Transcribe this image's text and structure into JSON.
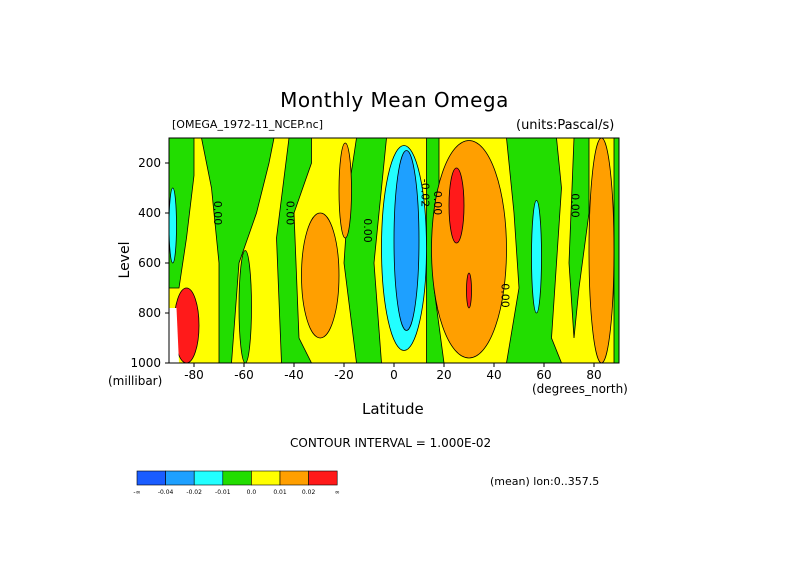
{
  "chart_data": {
    "type": "heatmap",
    "title": "Monthly Mean Omega",
    "file_label": "[OMEGA_1972-11_NCEP.nc]",
    "units_label": "(units:Pascal/s)",
    "xlabel": "Latitude",
    "x_units": "(degrees_north)",
    "ylabel": "Level",
    "y_units": "(millibar)",
    "xlim": [
      -90,
      90
    ],
    "ylim": [
      1000,
      100
    ],
    "x_ticks": [
      -80,
      -60,
      -40,
      -20,
      0,
      20,
      40,
      60,
      80
    ],
    "y_ticks": [
      200,
      400,
      600,
      800,
      1000
    ],
    "contour_interval_text": "CONTOUR INTERVAL = 1.000E-02",
    "mean_text": "(mean) lon:0..357.5",
    "colorbar": {
      "colors": [
        "#1a5cff",
        "#1ea0ff",
        "#22ffff",
        "#22dd00",
        "#ffff00",
        "#ff9f00",
        "#ff1a1a"
      ],
      "labels": [
        "-∞",
        "-0.04",
        "-0.02",
        "-0.01",
        "0.0",
        "0.01",
        "0.02",
        "∞"
      ]
    },
    "contour_labels": [
      {
        "text": "0.00",
        "lat": -72,
        "lev": 400
      },
      {
        "text": "0.00",
        "lat": -43,
        "lev": 400
      },
      {
        "text": "0.00",
        "lat": -12,
        "lev": 470
      },
      {
        "text": "-0.02",
        "lat": 11,
        "lev": 320
      },
      {
        "text": "0.00",
        "lat": 16,
        "lev": 360
      },
      {
        "text": "0.00",
        "lat": 43,
        "lev": 730
      },
      {
        "text": "0.00",
        "lat": 71,
        "lev": 370
      }
    ],
    "regions": [
      {
        "value": -0.02,
        "color": "#22ffff",
        "lat": [
          -90,
          -87
        ],
        "lev": [
          300,
          600
        ],
        "note": "upper-left edge"
      },
      {
        "value": -0.01,
        "color": "#22dd00",
        "lat": [
          -62,
          -57
        ],
        "lev": [
          550,
          1000
        ]
      },
      {
        "value": 0.01,
        "color": "#ff9f00",
        "lat": [
          -37,
          -22
        ],
        "lev": [
          400,
          900
        ]
      },
      {
        "value": 0.01,
        "color": "#ff9f00",
        "lat": [
          -22,
          -17
        ],
        "lev": [
          120,
          500
        ]
      },
      {
        "value": -0.02,
        "color": "#22ffff",
        "lat": [
          -5,
          13
        ],
        "lev": [
          130,
          950
        ]
      },
      {
        "value": -0.04,
        "color": "#1ea0ff",
        "lat": [
          0,
          10
        ],
        "lev": [
          150,
          870
        ]
      },
      {
        "value": 0.01,
        "color": "#ff9f00",
        "lat": [
          15,
          45
        ],
        "lev": [
          110,
          980
        ]
      },
      {
        "value": 0.02,
        "color": "#ff1a1a",
        "lat": [
          22,
          28
        ],
        "lev": [
          220,
          520
        ]
      },
      {
        "value": 0.02,
        "color": "#ff1a1a",
        "lat": [
          29,
          31
        ],
        "lev": [
          640,
          780
        ]
      },
      {
        "value": -0.02,
        "color": "#22ffff",
        "lat": [
          55,
          59
        ],
        "lev": [
          350,
          800
        ]
      },
      {
        "value": 0.01,
        "color": "#ff9f00",
        "lat": [
          78,
          88
        ],
        "lev": [
          100,
          1000
        ]
      },
      {
        "value": 0.03,
        "color": "#ff1a1a",
        "lat": [
          -88,
          -78
        ],
        "lev": [
          700,
          1000
        ],
        "note": "strong lower-left max"
      }
    ]
  }
}
